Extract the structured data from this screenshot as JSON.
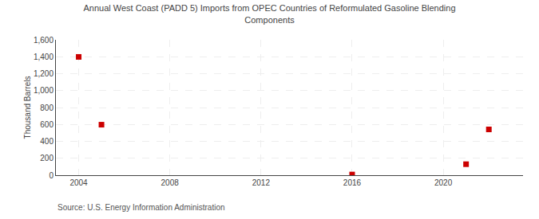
{
  "chart_data": {
    "type": "scatter",
    "title": "Annual West Coast (PADD 5) Imports from OPEC Countries of Reformulated Gasoline Blending\nComponents",
    "y_label": "Thousand Barrels",
    "annotations": [
      "Source: U.S. Energy Information Administration"
    ],
    "x": [
      2004,
      2005,
      2016,
      2021,
      2022
    ],
    "values": [
      1398,
      597,
      8,
      130,
      541
    ],
    "color": "#cc0000",
    "marker": "square",
    "xlim": [
      2003.0,
      2023.5
    ],
    "xticks": [
      2004,
      2008,
      2012,
      2016,
      2020
    ],
    "ylim": [
      0,
      1600
    ],
    "yticks": [
      0,
      200,
      400,
      600,
      800,
      {
        "value": 1000,
        "label": "1,000"
      },
      {
        "value": 1200,
        "label": "1,200"
      },
      {
        "value": 1400,
        "label": "1,400"
      },
      {
        "value": 1600,
        "label": "1,600"
      }
    ],
    "grid": true
  }
}
